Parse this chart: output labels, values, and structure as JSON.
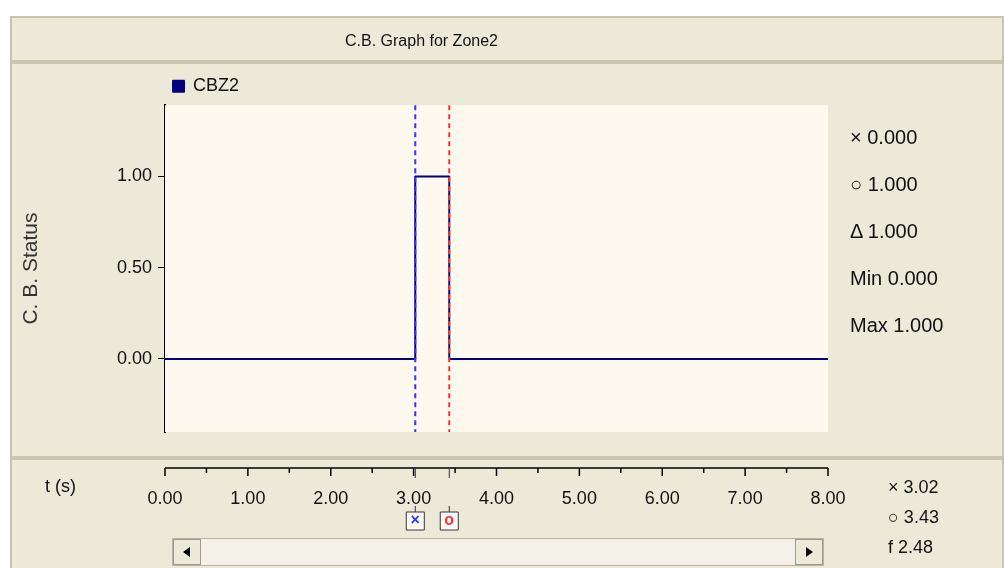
{
  "chart_data": {
    "type": "step",
    "title": "C.B. Graph for Zone2",
    "xlabel": "t (s)",
    "ylabel": "C. B. Status",
    "x": [
      0,
      3.02,
      3.43,
      8
    ],
    "series": [
      {
        "name": "CBZ2",
        "color": "#000080",
        "values": [
          0,
          1,
          0,
          0
        ]
      }
    ],
    "xlim": [
      0,
      8
    ],
    "xticks": [
      {
        "value": 0,
        "label": "0.00"
      },
      {
        "value": 1,
        "label": "1.00"
      },
      {
        "value": 2,
        "label": "2.00"
      },
      {
        "value": 3,
        "label": "3.00"
      },
      {
        "value": 4,
        "label": "4.00"
      },
      {
        "value": 5,
        "label": "5.00"
      },
      {
        "value": 6,
        "label": "6.00"
      },
      {
        "value": 7,
        "label": "7.00"
      },
      {
        "value": 8,
        "label": "8.00"
      }
    ],
    "ylim": [
      -0.4,
      1.39
    ],
    "yticks": [
      {
        "value": 0,
        "label": "0.00"
      },
      {
        "value": 0.5,
        "label": "0.50"
      },
      {
        "value": 1,
        "label": "1.00"
      }
    ],
    "ref_lines": [
      {
        "axis": "x",
        "value": 3.02,
        "label": "×",
        "color": "#3333ff",
        "line_style": "dashed"
      },
      {
        "axis": "x",
        "value": 3.43,
        "label": "o",
        "color": "#ff3333",
        "line_style": "dashed"
      }
    ],
    "annotations": [
      "× 0.000",
      "○ 1.000",
      "Δ 1.000",
      "Min 0.000",
      "Max 1.000",
      "× 3.02",
      "○ 3.43",
      "f 2.48"
    ],
    "grid": false,
    "legend": "top",
    "marker": "none",
    "line_style": "solid"
  }
}
